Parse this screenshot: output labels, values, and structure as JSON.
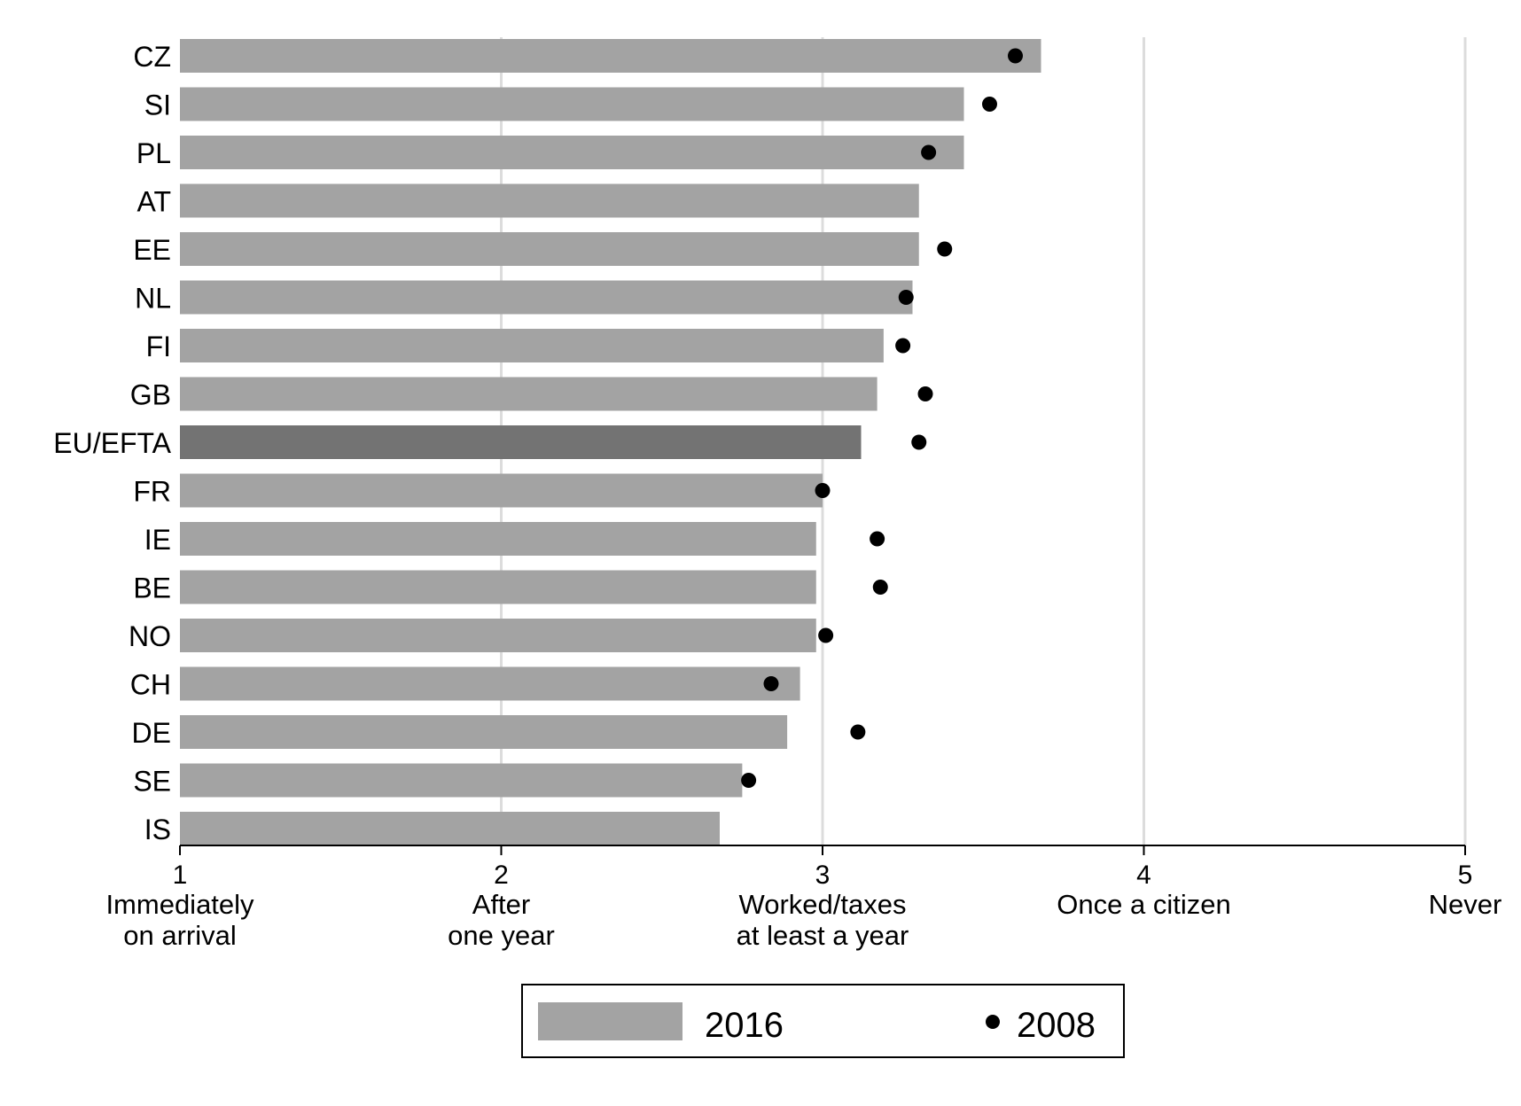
{
  "chart_data": {
    "type": "bar",
    "orientation": "horizontal",
    "title": "",
    "xlabel": "",
    "ylabel": "",
    "xlim": [
      1,
      5
    ],
    "grid": true,
    "legend_position": "bottom",
    "x_ticks": [
      {
        "value": 1,
        "label": "1",
        "desc": [
          "Immediately",
          "on arrival"
        ]
      },
      {
        "value": 2,
        "label": "2",
        "desc": [
          "After",
          "one year"
        ]
      },
      {
        "value": 3,
        "label": "3",
        "desc": [
          "Worked/taxes",
          "at least a year"
        ]
      },
      {
        "value": 4,
        "label": "4",
        "desc": [
          "Once a citizen"
        ]
      },
      {
        "value": 5,
        "label": "5",
        "desc": [
          "Never"
        ]
      }
    ],
    "categories": [
      "CZ",
      "SI",
      "PL",
      "AT",
      "EE",
      "NL",
      "FI",
      "GB",
      "EU/EFTA",
      "FR",
      "IE",
      "BE",
      "NO",
      "CH",
      "DE",
      "SE",
      "IS"
    ],
    "highlight_category": "EU/EFTA",
    "series": [
      {
        "name": "2016",
        "kind": "bar",
        "color": "#a3a3a3",
        "highlight_color": "#737373",
        "values": [
          3.68,
          3.44,
          3.44,
          3.3,
          3.3,
          3.28,
          3.19,
          3.17,
          3.12,
          3.0,
          2.98,
          2.98,
          2.98,
          2.93,
          2.89,
          2.75,
          2.68
        ]
      },
      {
        "name": "2008",
        "kind": "dot",
        "color": "#000000",
        "values": [
          3.6,
          3.52,
          3.33,
          null,
          3.38,
          3.26,
          3.25,
          3.32,
          3.3,
          3.0,
          3.17,
          3.18,
          3.01,
          2.84,
          3.11,
          2.77,
          null
        ]
      }
    ]
  }
}
